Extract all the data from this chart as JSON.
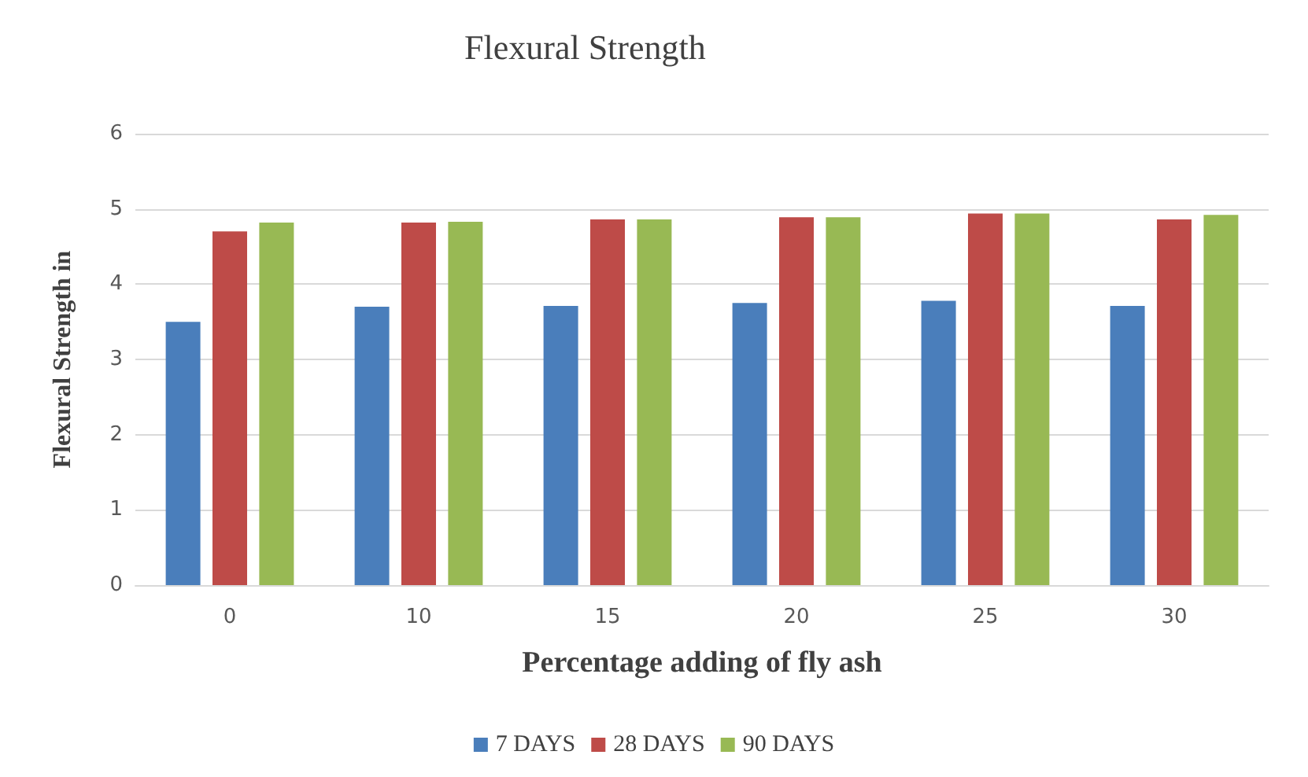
{
  "chart_data": {
    "type": "bar",
    "title": "Flexural Strength",
    "xlabel": "Percentage adding of fly ash",
    "ylabel": "Flexural Strength in",
    "categories": [
      "0",
      "10",
      "15",
      "20",
      "25",
      "30"
    ],
    "series": [
      {
        "name": "7 DAYS",
        "color": "#4a7ebb",
        "values": [
          3.5,
          3.7,
          3.71,
          3.75,
          3.78,
          3.71
        ]
      },
      {
        "name": "28 DAYS",
        "color": "#be4b48",
        "values": [
          4.7,
          4.82,
          4.86,
          4.89,
          4.94,
          4.86
        ]
      },
      {
        "name": "90 DAYS",
        "color": "#98b954",
        "values": [
          4.82,
          4.83,
          4.86,
          4.89,
          4.94,
          4.92
        ]
      }
    ],
    "ylim": [
      0,
      6
    ],
    "yticks": [
      0,
      1,
      2,
      3,
      4,
      5,
      6
    ],
    "grid": "y",
    "legend": "bottom"
  }
}
